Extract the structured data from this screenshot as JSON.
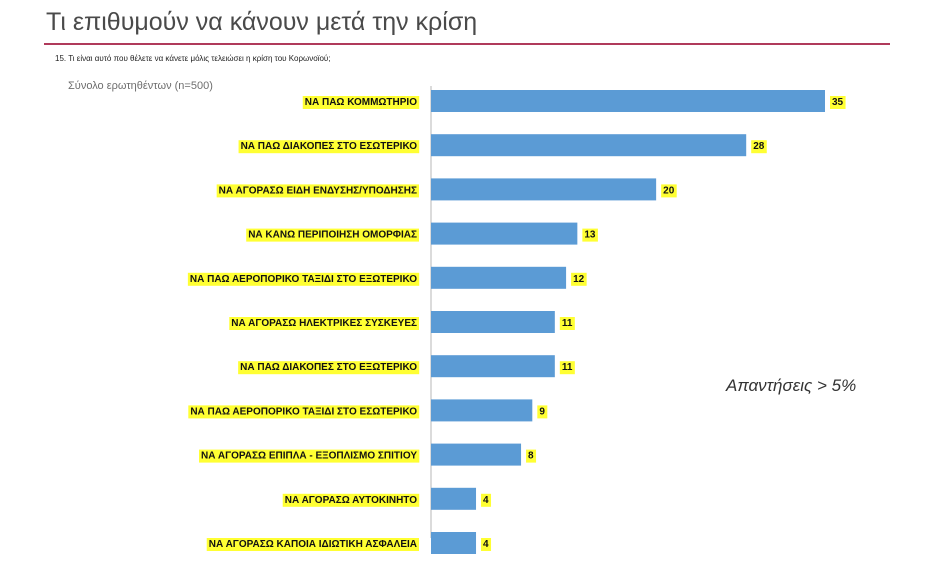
{
  "header": {
    "title": "Τι επιθυμούν να κάνουν μετά την κρίση",
    "question": "15. Τι είναι αυτό που θέλετε να κάνετε μόλις τελειώσει η κρίση του Κορωνοϊού;",
    "base_label": "Σύνολο ερωτηθέντων (n=500)",
    "note": "Απαντήσεις > 5%"
  },
  "colors": {
    "bar": "#5b9bd5",
    "highlight": "#ffff33",
    "title_rule": "#b03a5b",
    "axis": "#b7b7b7"
  },
  "chart_data": {
    "type": "bar",
    "orientation": "horizontal",
    "categories": [
      "ΝΑ ΠΑΩ ΚΟΜΜΩΤΗΡΙΟ",
      "ΝΑ ΠΑΩ ΔΙΑΚΟΠΕΣ ΣΤΟ ΕΣΩΤΕΡΙΚΟ",
      "ΝΑ ΑΓΟΡΑΣΩ ΕΙΔΗ ΕΝΔΥΣΗΣ/ΥΠΟΔΗΣΗΣ",
      "ΝΑ ΚΑΝΩ ΠΕΡΙΠΟΙΗΣΗ ΟΜΟΡΦΙΑΣ",
      "ΝΑ ΠΑΩ ΑΕΡΟΠΟΡΙΚΟ ΤΑΞΙΔΙ ΣΤΟ ΕΞΩΤΕΡΙΚΟ",
      "ΝΑ ΑΓΟΡΑΣΩ ΗΛΕΚΤΡΙΚΕΣ ΣΥΣΚΕΥΕΣ",
      "ΝΑ ΠΑΩ ΔΙΑΚΟΠΕΣ ΣΤΟ ΕΞΩΤΕΡΙΚΟ",
      "ΝΑ ΠΑΩ ΑΕΡΟΠΟΡΙΚΟ ΤΑΞΙΔΙ ΣΤΟ ΕΣΩΤΕΡΙΚΟ",
      "ΝΑ ΑΓΟΡΑΣΩ ΕΠΙΠΛΑ - ΕΞΟΠΛΙΣΜΟ ΣΠΙΤΙΟΥ",
      "ΝΑ ΑΓΟΡΑΣΩ ΑΥΤΟΚΙΝΗΤΟ",
      "ΝΑ ΑΓΟΡΑΣΩ ΚΑΠΟΙΑ ΙΔΙΩΤΙΚΗ ΑΣΦΑΛΕΙΑ"
    ],
    "values": [
      35,
      28,
      20,
      13,
      12,
      11,
      11,
      9,
      8,
      4,
      4
    ],
    "xlim": [
      0,
      35
    ],
    "grid": false,
    "legend": "none"
  }
}
